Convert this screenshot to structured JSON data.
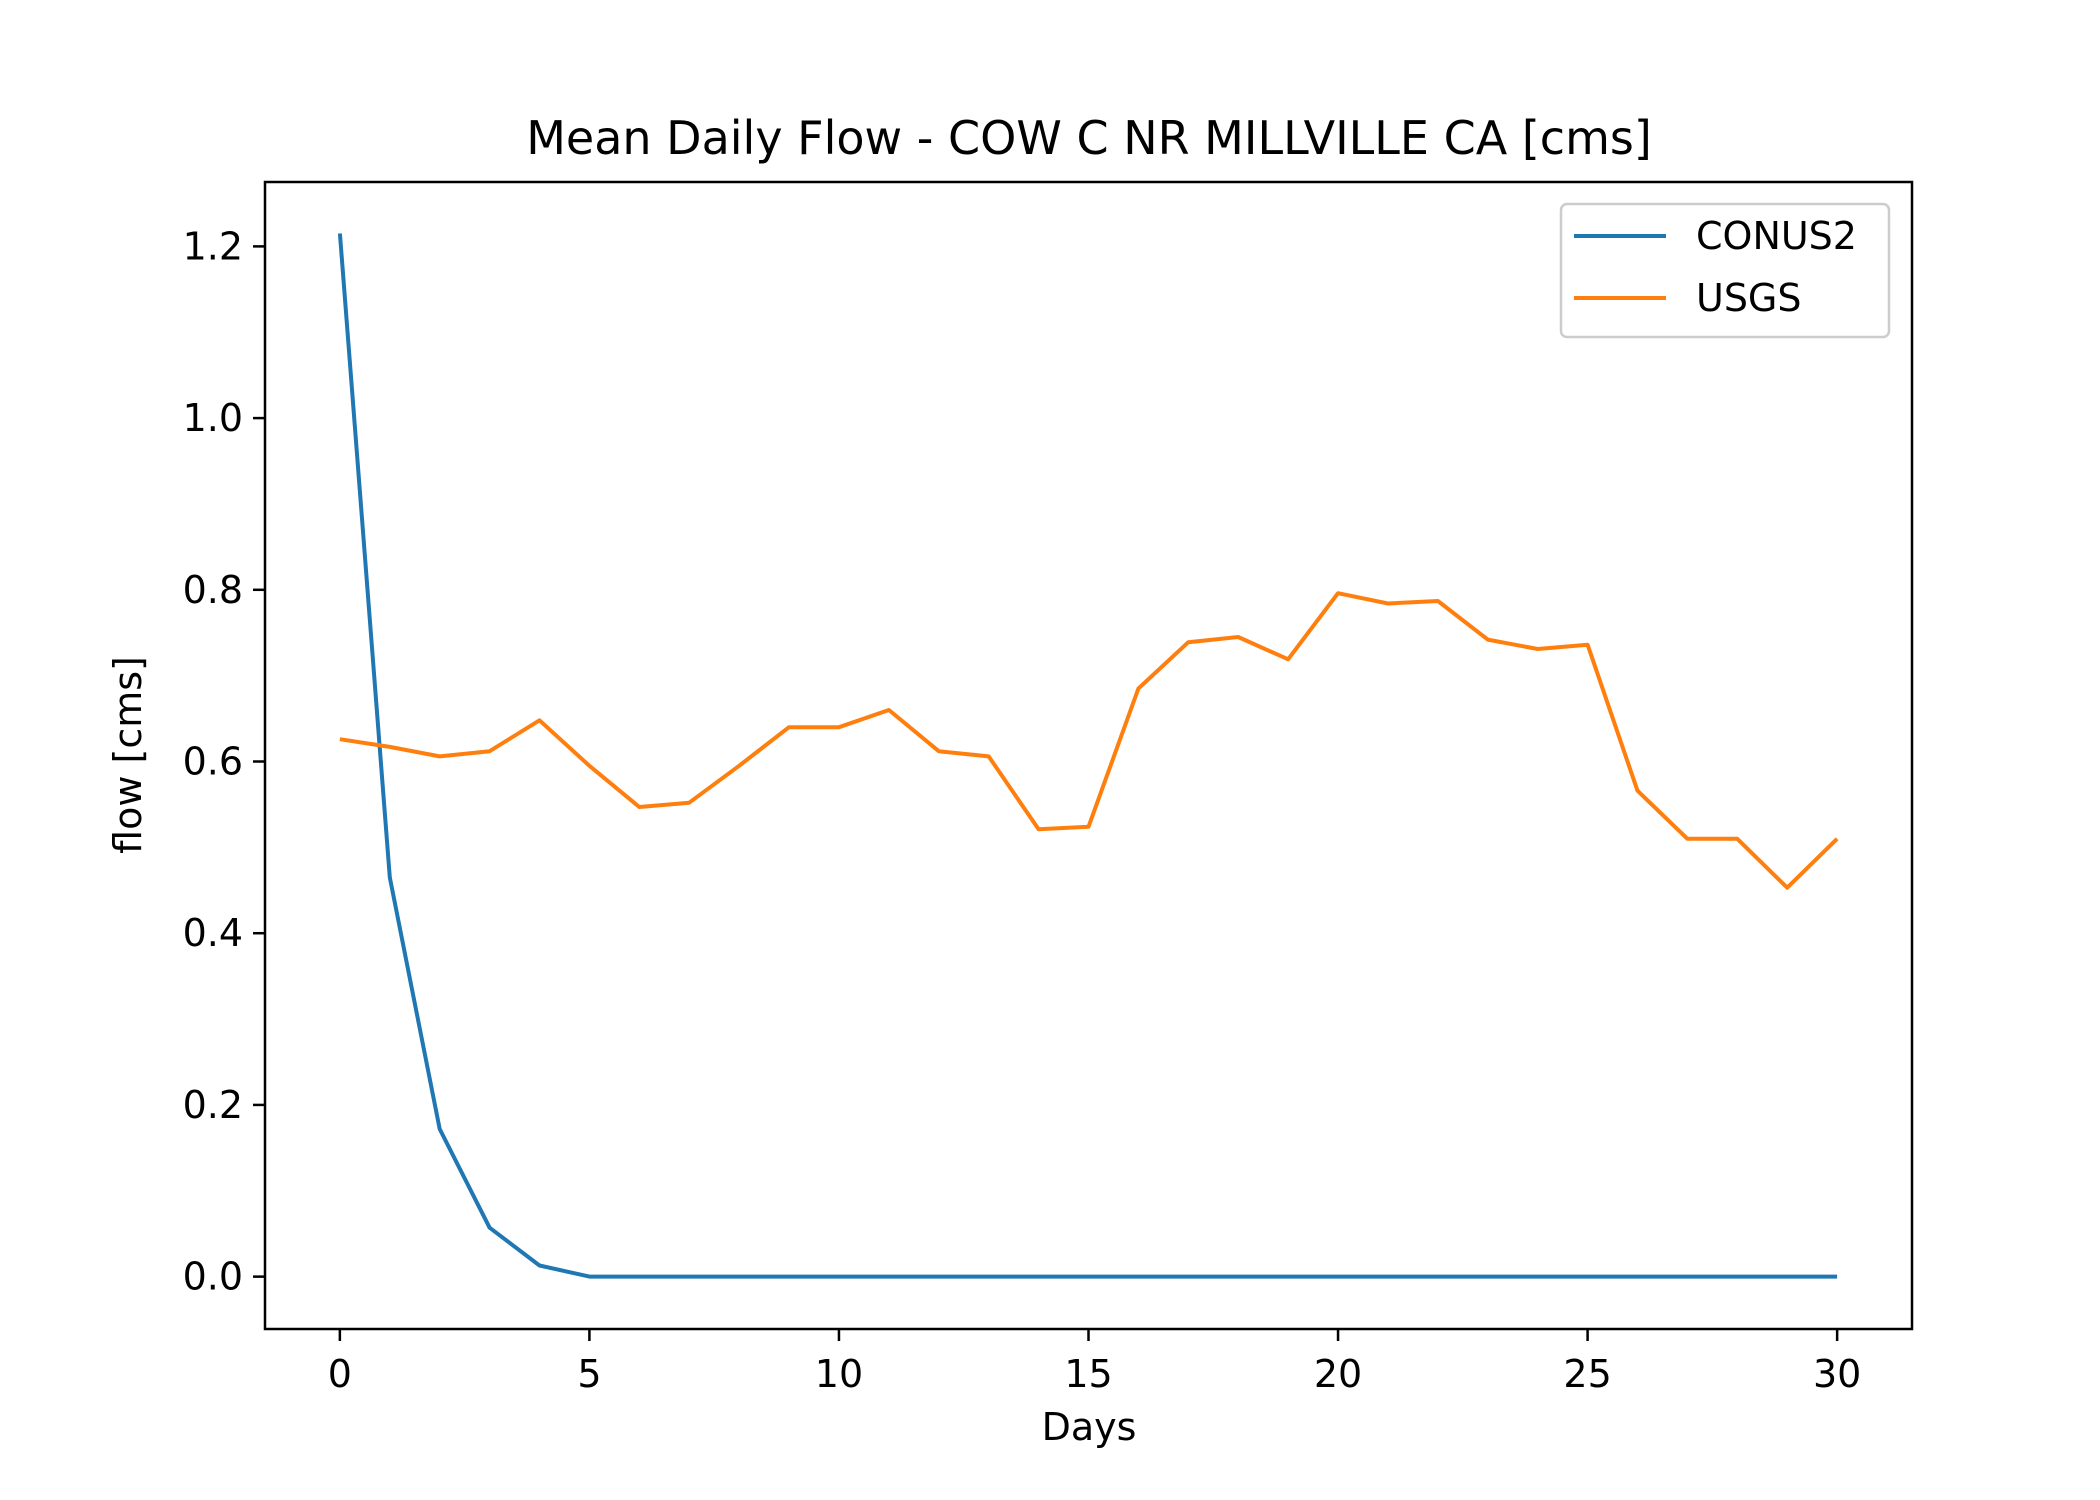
{
  "chart_data": {
    "type": "line",
    "title": "Mean Daily Flow - COW C NR MILLVILLE CA [cms]",
    "xlabel": "Days",
    "ylabel": "flow [cms]",
    "xlim": [
      -1.5,
      31.5
    ],
    "ylim": [
      -0.061,
      1.275
    ],
    "xticks": [
      0,
      5,
      10,
      15,
      20,
      25,
      30
    ],
    "xtick_labels": [
      "0",
      "5",
      "10",
      "15",
      "20",
      "25",
      "30"
    ],
    "yticks": [
      0.0,
      0.2,
      0.4,
      0.6,
      0.8,
      1.0,
      1.2
    ],
    "ytick_labels": [
      "0.0",
      "0.2",
      "0.4",
      "0.6",
      "0.8",
      "1.0",
      "1.2"
    ],
    "grid": false,
    "legend_position": "upper right",
    "x": [
      0,
      1,
      2,
      3,
      4,
      5,
      6,
      7,
      8,
      9,
      10,
      11,
      12,
      13,
      14,
      15,
      16,
      17,
      18,
      19,
      20,
      21,
      22,
      23,
      24,
      25,
      26,
      27,
      28,
      29,
      30
    ],
    "series": [
      {
        "name": "CONUS2",
        "color": "#1f77b4",
        "values": [
          1.215,
          0.465,
          0.172,
          0.057,
          0.013,
          0.0,
          0.0,
          0.0,
          0.0,
          0.0,
          0.0,
          0.0,
          0.0,
          0.0,
          0.0,
          0.0,
          0.0,
          0.0,
          0.0,
          0.0,
          0.0,
          0.0,
          0.0,
          0.0,
          0.0,
          0.0,
          0.0,
          0.0,
          0.0,
          0.0,
          0.0
        ]
      },
      {
        "name": "USGS",
        "color": "#ff7f0e",
        "values": [
          0.626,
          0.617,
          0.606,
          0.612,
          0.648,
          0.595,
          0.547,
          0.552,
          0.595,
          0.64,
          0.64,
          0.66,
          0.612,
          0.606,
          0.521,
          0.524,
          0.685,
          0.739,
          0.745,
          0.719,
          0.796,
          0.784,
          0.787,
          0.742,
          0.731,
          0.736,
          0.566,
          0.51,
          0.51,
          0.453,
          0.51
        ]
      }
    ]
  }
}
